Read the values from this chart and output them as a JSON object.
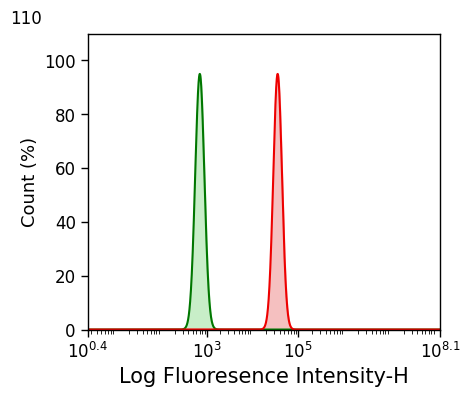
{
  "title": "",
  "xlabel": "Log Fluoresence Intensity-H",
  "ylabel": "Count (%)",
  "xmin": 0.4,
  "xmax": 8.1,
  "ymin": 0,
  "ymax": 110,
  "yticks": [
    0,
    20,
    40,
    60,
    80,
    100,
    110
  ],
  "green_peak_log": 2.85,
  "green_sigma_log": 0.1,
  "green_peak_height": 95,
  "red_peak_log": 4.55,
  "red_sigma_log": 0.095,
  "red_peak_height": 95,
  "green_line_color": "#007700",
  "green_fill_color": "#c8eec8",
  "red_line_color": "#ee0000",
  "red_fill_color": "#f5c0c0",
  "background_color": "#ffffff",
  "xlabel_fontsize": 15,
  "ylabel_fontsize": 13,
  "tick_fontsize": 12,
  "xtick_positions": [
    0.4,
    3,
    5,
    8.1
  ]
}
